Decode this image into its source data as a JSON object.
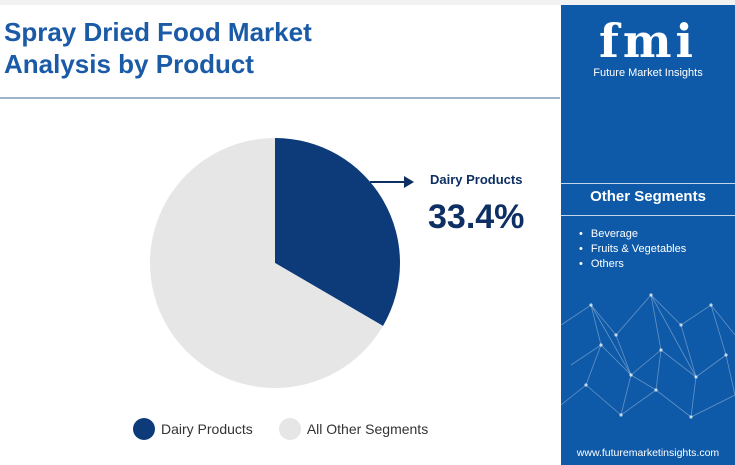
{
  "title_line1": "Spray Dried Food Market",
  "title_line2": "Analysis by Product",
  "chart_data": {
    "type": "pie",
    "slices": [
      {
        "label": "Dairy Products",
        "value": 33.4,
        "color": "#0d3b7a"
      },
      {
        "label": "All Other Segments",
        "value": 66.6,
        "color": "#e6e6e6"
      }
    ],
    "callout": {
      "label": "Dairy Products",
      "value_text": "33.4%"
    },
    "legend_position": "bottom"
  },
  "legend": {
    "items": [
      {
        "label": "Dairy Products",
        "color": "#0d3b7a"
      },
      {
        "label": "All Other Segments",
        "color": "#e6e6e6"
      }
    ]
  },
  "side_panel": {
    "logo_text": "fmi",
    "logo_subtitle": "Future Market Insights",
    "heading": "Other Segments",
    "segments": [
      "Beverage",
      "Fruits & Vegetables",
      "Others"
    ],
    "website": "www.futuremarketinsights.com",
    "background": "#0f5aa8"
  }
}
